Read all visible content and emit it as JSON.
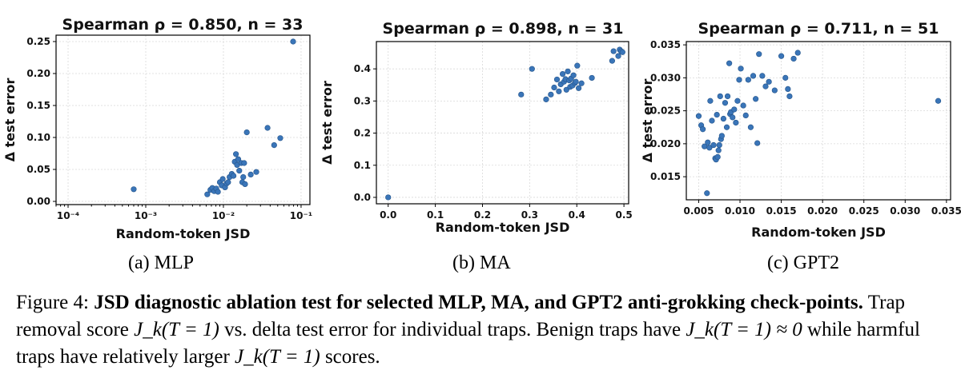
{
  "chart_data": [
    {
      "type": "scatter",
      "title": "Spearman ρ = 0.850, n = 33",
      "xlabel": "Random-token JSD",
      "ylabel": "Δ test error",
      "xscale": "log",
      "xlim": [
        7e-05,
        0.13
      ],
      "ylim": [
        -0.005,
        0.26
      ],
      "xticks": [
        0.0001,
        0.001,
        0.01,
        0.1
      ],
      "xtick_labels": [
        "10⁻⁴",
        "10⁻³",
        "10⁻²",
        "10⁻¹"
      ],
      "yticks": [
        0.0,
        0.05,
        0.1,
        0.15,
        0.2,
        0.25
      ],
      "ytick_labels": [
        "0.00",
        "0.05",
        "0.10",
        "0.15",
        "0.20",
        "0.25"
      ],
      "grid": true,
      "series": [
        {
          "points": [
            [
              0.0007,
              0.019
            ],
            [
              0.0062,
              0.011
            ],
            [
              0.0068,
              0.018
            ],
            [
              0.0072,
              0.021
            ],
            [
              0.0076,
              0.016
            ],
            [
              0.0081,
              0.02
            ],
            [
              0.0085,
              0.015
            ],
            [
              0.009,
              0.03
            ],
            [
              0.0095,
              0.025
            ],
            [
              0.0098,
              0.035
            ],
            [
              0.0105,
              0.022
            ],
            [
              0.011,
              0.028
            ],
            [
              0.0115,
              0.03
            ],
            [
              0.012,
              0.038
            ],
            [
              0.0128,
              0.043
            ],
            [
              0.0135,
              0.04
            ],
            [
              0.014,
              0.062
            ],
            [
              0.0145,
              0.074
            ],
            [
              0.015,
              0.057
            ],
            [
              0.0155,
              0.066
            ],
            [
              0.016,
              0.048
            ],
            [
              0.017,
              0.06
            ],
            [
              0.0175,
              0.03
            ],
            [
              0.018,
              0.038
            ],
            [
              0.0185,
              0.06
            ],
            [
              0.019,
              0.027
            ],
            [
              0.02,
              0.108
            ],
            [
              0.0225,
              0.042
            ],
            [
              0.0265,
              0.046
            ],
            [
              0.037,
              0.115
            ],
            [
              0.045,
              0.088
            ],
            [
              0.054,
              0.099
            ],
            [
              0.079,
              0.25
            ]
          ]
        }
      ]
    },
    {
      "type": "scatter",
      "title": "Spearman ρ = 0.898, n = 31",
      "xlabel": "Random-token JSD",
      "ylabel": "Δ test error",
      "xlim": [
        -0.025,
        0.51
      ],
      "ylim": [
        -0.02,
        0.485
      ],
      "xticks": [
        0.0,
        0.1,
        0.2,
        0.3,
        0.4,
        0.5
      ],
      "xtick_labels": [
        "0.0",
        "0.1",
        "0.2",
        "0.3",
        "0.4",
        "0.5"
      ],
      "yticks": [
        0.0,
        0.1,
        0.2,
        0.3,
        0.4
      ],
      "ytick_labels": [
        "0.0",
        "0.1",
        "0.2",
        "0.3",
        "0.4"
      ],
      "grid": true,
      "series": [
        {
          "points": [
            [
              0.0,
              0.0
            ],
            [
              0.282,
              0.32
            ],
            [
              0.305,
              0.4
            ],
            [
              0.335,
              0.305
            ],
            [
              0.345,
              0.32
            ],
            [
              0.352,
              0.342
            ],
            [
              0.358,
              0.367
            ],
            [
              0.362,
              0.33
            ],
            [
              0.366,
              0.352
            ],
            [
              0.37,
              0.384
            ],
            [
              0.373,
              0.36
            ],
            [
              0.376,
              0.368
            ],
            [
              0.378,
              0.335
            ],
            [
              0.381,
              0.392
            ],
            [
              0.384,
              0.364
            ],
            [
              0.386,
              0.344
            ],
            [
              0.388,
              0.37
            ],
            [
              0.391,
              0.348
            ],
            [
              0.393,
              0.38
            ],
            [
              0.396,
              0.356
            ],
            [
              0.398,
              0.36
            ],
            [
              0.401,
              0.41
            ],
            [
              0.404,
              0.34
            ],
            [
              0.41,
              0.355
            ],
            [
              0.432,
              0.372
            ],
            [
              0.475,
              0.425
            ],
            [
              0.478,
              0.455
            ],
            [
              0.488,
              0.44
            ],
            [
              0.491,
              0.46
            ],
            [
              0.494,
              0.455
            ],
            [
              0.497,
              0.452
            ]
          ]
        }
      ]
    },
    {
      "type": "scatter",
      "title": "Spearman ρ = 0.711, n = 51",
      "xlabel": "Random-token JSD",
      "ylabel": "Δ test error",
      "xlim": [
        0.0035,
        0.0355
      ],
      "ylim": [
        0.0115,
        0.0355
      ],
      "xticks": [
        0.005,
        0.01,
        0.015,
        0.02,
        0.025,
        0.03,
        0.035
      ],
      "xtick_labels": [
        "0.005",
        "0.010",
        "0.015",
        "0.020",
        "0.025",
        "0.030",
        "0.035"
      ],
      "yticks": [
        0.015,
        0.02,
        0.025,
        0.03,
        0.035
      ],
      "ytick_labels": [
        "0.015",
        "0.020",
        "0.025",
        "0.030",
        "0.035"
      ],
      "grid": true,
      "series": [
        {
          "points": [
            [
              0.005,
              0.0242
            ],
            [
              0.0053,
              0.0228
            ],
            [
              0.0055,
              0.0222
            ],
            [
              0.0057,
              0.0196
            ],
            [
              0.006,
              0.0125
            ],
            [
              0.0061,
              0.0202
            ],
            [
              0.0063,
              0.0194
            ],
            [
              0.0064,
              0.0265
            ],
            [
              0.0066,
              0.0235
            ],
            [
              0.0068,
              0.0198
            ],
            [
              0.007,
              0.0178
            ],
            [
              0.0071,
              0.0176
            ],
            [
              0.0072,
              0.0244
            ],
            [
              0.0073,
              0.018
            ],
            [
              0.0074,
              0.019
            ],
            [
              0.0075,
              0.0198
            ],
            [
              0.0076,
              0.0272
            ],
            [
              0.0077,
              0.0207
            ],
            [
              0.0078,
              0.0212
            ],
            [
              0.008,
              0.0238
            ],
            [
              0.0082,
              0.0262
            ],
            [
              0.0084,
              0.0225
            ],
            [
              0.0085,
              0.0272
            ],
            [
              0.0087,
              0.0322
            ],
            [
              0.0088,
              0.0245
            ],
            [
              0.0089,
              0.0248
            ],
            [
              0.0091,
              0.024
            ],
            [
              0.0093,
              0.0252
            ],
            [
              0.0095,
              0.0232
            ],
            [
              0.0097,
              0.0265
            ],
            [
              0.0099,
              0.0297
            ],
            [
              0.0101,
              0.0314
            ],
            [
              0.0104,
              0.0258
            ],
            [
              0.0107,
              0.0243
            ],
            [
              0.011,
              0.0297
            ],
            [
              0.0113,
              0.0225
            ],
            [
              0.0116,
              0.0303
            ],
            [
              0.0119,
              0.0268
            ],
            [
              0.0121,
              0.0201
            ],
            [
              0.0123,
              0.0336
            ],
            [
              0.0127,
              0.0303
            ],
            [
              0.0131,
              0.0287
            ],
            [
              0.0135,
              0.0294
            ],
            [
              0.0142,
              0.0281
            ],
            [
              0.015,
              0.0333
            ],
            [
              0.0155,
              0.03
            ],
            [
              0.0158,
              0.0283
            ],
            [
              0.016,
              0.0272
            ],
            [
              0.0165,
              0.0329
            ],
            [
              0.017,
              0.0338
            ],
            [
              0.034,
              0.0265
            ]
          ]
        }
      ]
    }
  ],
  "subcaptions": [
    "(a) MLP",
    "(b) MA",
    "(c) GPT2"
  ],
  "figure_caption": {
    "label": "Figure 4:",
    "title": "JSD diagnostic ablation test for selected MLP, MA, and GPT2 anti-grokking check-points.",
    "body_1": "Trap removal score",
    "formula_1": "J_k(T = 1)",
    "body_2": "vs. delta test error for individual traps. Benign traps have",
    "formula_2": "J_k(T = 1) ≈ 0",
    "body_3": "while harmful traps have relatively larger",
    "formula_3": "J_k(T = 1)",
    "body_4": "scores."
  }
}
